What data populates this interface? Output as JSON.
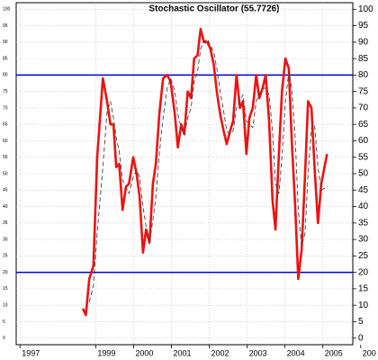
{
  "chart_data": {
    "type": "line",
    "title": "Stochastic Oscillator (55.7726)",
    "x": [
      1998.66,
      1998.74,
      1998.83,
      1998.94,
      1999.04,
      1999.19,
      1999.3,
      1999.39,
      1999.47,
      1999.54,
      1999.62,
      1999.71,
      1999.8,
      1999.88,
      1999.99,
      2000.08,
      2000.16,
      2000.25,
      2000.33,
      2000.42,
      2000.51,
      2000.59,
      2000.68,
      2000.78,
      2000.89,
      2000.98,
      2001.09,
      2001.17,
      2001.26,
      2001.34,
      2001.43,
      2001.52,
      2001.6,
      2001.69,
      2001.77,
      2001.86,
      2001.95,
      2002.03,
      2002.12,
      2002.2,
      2002.29,
      2002.38,
      2002.46,
      2002.55,
      2002.63,
      2002.72,
      2002.81,
      2002.89,
      2002.98,
      2003.06,
      2003.15,
      2003.24,
      2003.32,
      2003.41,
      2003.49,
      2003.58,
      2003.67,
      2003.75,
      2003.84,
      2003.92,
      2004.01,
      2004.1,
      2004.18,
      2004.27,
      2004.35,
      2004.44,
      2004.53,
      2004.61,
      2004.7,
      2004.78,
      2004.87,
      2004.96,
      2005.11
    ],
    "series": [
      {
        "color": "#ee1111",
        "dashed": false,
        "width": 2.6,
        "values": [
          9,
          7,
          18,
          22,
          55,
          79,
          72,
          65,
          65,
          52,
          53,
          39,
          46,
          47,
          55,
          50,
          43,
          26,
          33,
          29,
          47,
          53,
          68,
          79,
          80,
          78,
          68,
          58,
          65,
          62,
          75,
          73,
          85,
          86,
          94,
          90,
          90,
          88,
          83,
          75,
          68,
          63,
          59,
          63,
          66,
          80,
          70,
          72,
          56,
          67,
          70,
          80,
          73,
          76,
          80,
          66,
          42,
          33,
          56,
          75,
          85,
          82,
          60,
          40,
          18,
          27,
          50,
          72,
          70,
          52,
          35,
          47,
          56
        ]
      },
      {
        "color": "#444444",
        "dashed": true,
        "width": 0.9,
        "values": [
          null,
          null,
          11,
          16,
          32,
          52,
          69,
          72,
          67,
          61,
          57,
          48,
          46,
          44,
          49,
          51,
          49,
          40,
          34,
          29,
          36,
          43,
          56,
          67,
          76,
          79,
          75,
          68,
          64,
          62,
          67,
          70,
          78,
          81,
          88,
          90,
          91,
          89,
          87,
          82,
          75,
          69,
          63,
          62,
          63,
          70,
          72,
          74,
          66,
          65,
          64,
          72,
          74,
          76,
          76,
          74,
          63,
          47,
          44,
          55,
          72,
          81,
          76,
          61,
          39,
          28,
          32,
          50,
          64,
          65,
          52,
          45,
          46
        ]
      }
    ],
    "levels": [
      20,
      80
    ],
    "level_color": "#0000cc",
    "xlim": [
      1996.9,
      2006.1
    ],
    "xticks": [
      1997,
      1999,
      2000,
      2001,
      2002,
      2003,
      2004,
      2005,
      {
        "value": 2006,
        "label": "200"
      }
    ],
    "ylim": [
      -2,
      102
    ],
    "yticks": [
      0,
      5,
      10,
      15,
      20,
      25,
      30,
      35,
      40,
      45,
      50,
      55,
      60,
      65,
      70,
      75,
      80,
      85,
      90,
      95,
      100
    ],
    "grid": true
  }
}
